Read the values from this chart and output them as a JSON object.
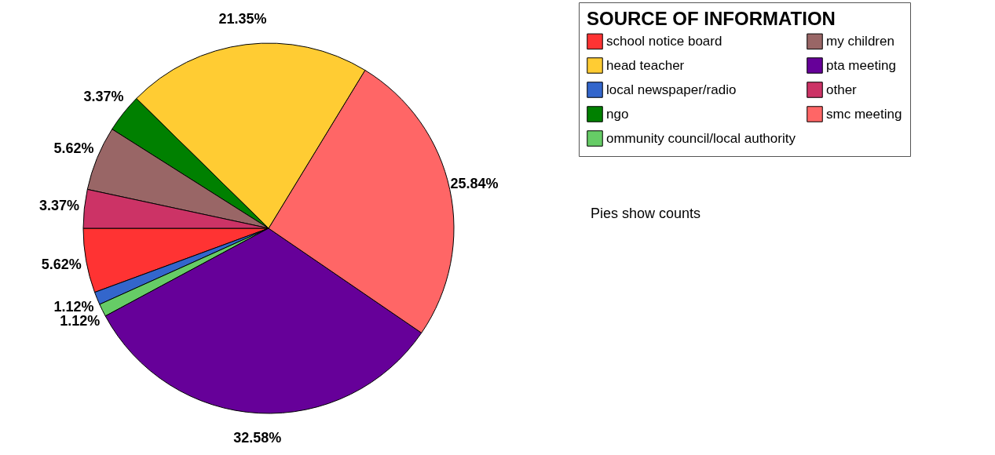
{
  "chart_data": {
    "type": "pie",
    "legend_title": "SOURCE OF INFORMATION",
    "legend": "top right",
    "categories": [
      "school notice board",
      "local newspaper/radio",
      "ommunity council/local authority",
      "pta meeting",
      "smc meeting",
      "head teacher",
      "ngo",
      "my children",
      "other"
    ],
    "values": [
      5.62,
      1.12,
      1.12,
      32.58,
      25.84,
      21.35,
      3.37,
      5.62,
      3.37
    ],
    "value_labels": [
      "5.62%",
      "1.12%",
      "1.12%",
      "32.58%",
      "25.84%",
      "21.35%",
      "3.37%",
      "5.62%",
      "3.37%"
    ],
    "colors": [
      "#ff3333",
      "#3366cc",
      "#66cc66",
      "#660099",
      "#ff6666",
      "#ffcc33",
      "#008000",
      "#996666",
      "#cc3366"
    ],
    "annotations": [
      "Pies show counts"
    ]
  }
}
